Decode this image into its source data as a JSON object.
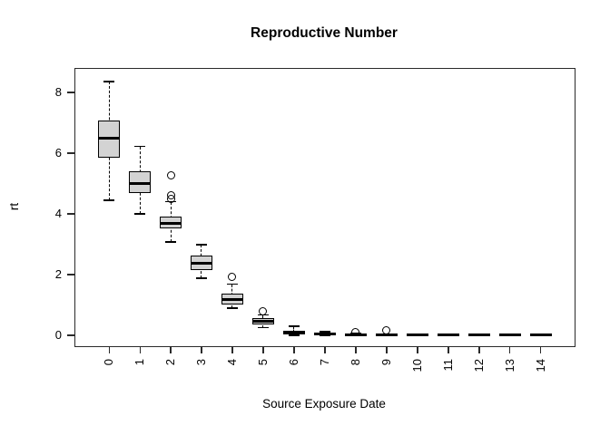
{
  "title": "Reproductive Number",
  "chart_data": {
    "type": "boxplot",
    "title": "Reproductive Number",
    "xlabel": "Source Exposure Date",
    "ylabel": "rt",
    "categories": [
      "0",
      "1",
      "2",
      "3",
      "4",
      "5",
      "6",
      "7",
      "8",
      "9",
      "10",
      "11",
      "12",
      "13",
      "14"
    ],
    "yticks": [
      0,
      2,
      4,
      6,
      8
    ],
    "ylim": [
      -0.36,
      8.78
    ],
    "grid": false,
    "legend": "none",
    "box_fill_color": "#d3d3d3",
    "box_border_color": "#000000",
    "series": [
      {
        "category": "0",
        "low": 4.45,
        "q1": 5.84,
        "median": 6.5,
        "q3": 7.07,
        "high": 8.36,
        "outliers": []
      },
      {
        "category": "1",
        "low": 4.0,
        "q1": 4.7,
        "median": 4.99,
        "q3": 5.39,
        "high": 6.22,
        "outliers": []
      },
      {
        "category": "2",
        "low": 3.07,
        "q1": 3.52,
        "median": 3.7,
        "q3": 3.9,
        "high": 4.4,
        "outliers": [
          4.5,
          4.62,
          5.26
        ]
      },
      {
        "category": "3",
        "low": 1.88,
        "q1": 2.14,
        "median": 2.38,
        "q3": 2.64,
        "high": 2.98,
        "outliers": []
      },
      {
        "category": "4",
        "low": 0.89,
        "q1": 1.01,
        "median": 1.19,
        "q3": 1.36,
        "high": 1.68,
        "outliers": [
          1.91
        ]
      },
      {
        "category": "5",
        "low": 0.25,
        "q1": 0.37,
        "median": 0.47,
        "q3": 0.56,
        "high": 0.67,
        "outliers": [
          0.78
        ]
      },
      {
        "category": "6",
        "low": 0.0,
        "q1": 0.03,
        "median": 0.09,
        "q3": 0.16,
        "high": 0.3,
        "outliers": []
      },
      {
        "category": "7",
        "low": 0.0,
        "q1": 0.01,
        "median": 0.03,
        "q3": 0.07,
        "high": 0.12,
        "outliers": []
      },
      {
        "category": "8",
        "low": 0.0,
        "q1": 0.0,
        "median": 0.02,
        "q3": 0.04,
        "high": 0.06,
        "outliers": [
          0.1
        ]
      },
      {
        "category": "9",
        "low": 0.0,
        "q1": 0.0,
        "median": 0.01,
        "q3": 0.02,
        "high": 0.03,
        "outliers": [
          0.15
        ]
      },
      {
        "category": "10",
        "low": 0.0,
        "q1": 0.0,
        "median": 0.01,
        "q3": 0.02,
        "high": 0.02,
        "outliers": []
      },
      {
        "category": "11",
        "low": 0.0,
        "q1": 0.0,
        "median": 0.01,
        "q3": 0.02,
        "high": 0.02,
        "outliers": []
      },
      {
        "category": "12",
        "low": 0.0,
        "q1": 0.0,
        "median": 0.01,
        "q3": 0.02,
        "high": 0.02,
        "outliers": []
      },
      {
        "category": "13",
        "low": 0.0,
        "q1": 0.0,
        "median": 0.01,
        "q3": 0.02,
        "high": 0.02,
        "outliers": []
      },
      {
        "category": "14",
        "low": 0.0,
        "q1": 0.0,
        "median": 0.01,
        "q3": 0.02,
        "high": 0.02,
        "outliers": []
      }
    ]
  }
}
